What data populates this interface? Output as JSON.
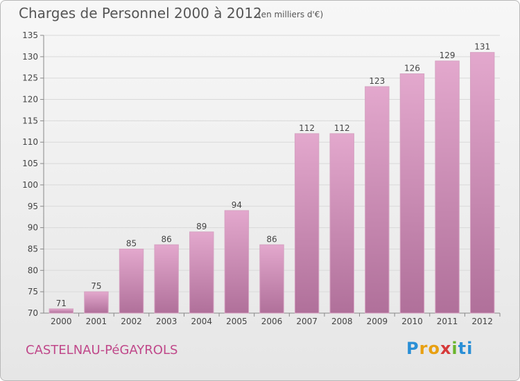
{
  "header": {
    "title": "Charges de Personnel 2000 à 2012",
    "subtitle": "(en milliers d'€)"
  },
  "footer": {
    "commune": "CASTELNAU-PéGAYROLS",
    "logo": "Proxiti"
  },
  "colors": {
    "bar_top": "#e3a8cd",
    "bar_bottom": "#b0709a",
    "accent": "#c0488a"
  },
  "chart_data": {
    "type": "bar",
    "title": "Charges de Personnel 2000 à 2012",
    "subtitle": "(en milliers d'€)",
    "categories": [
      "2000",
      "2001",
      "2002",
      "2003",
      "2004",
      "2005",
      "2006",
      "2007",
      "2008",
      "2009",
      "2010",
      "2011",
      "2012"
    ],
    "values": [
      71,
      75,
      85,
      86,
      89,
      94,
      86,
      112,
      112,
      123,
      126,
      129,
      131
    ],
    "ylim": [
      70,
      135
    ],
    "yticks": [
      70,
      75,
      80,
      85,
      90,
      95,
      100,
      105,
      110,
      115,
      120,
      125,
      130,
      135
    ],
    "grid": true
  }
}
